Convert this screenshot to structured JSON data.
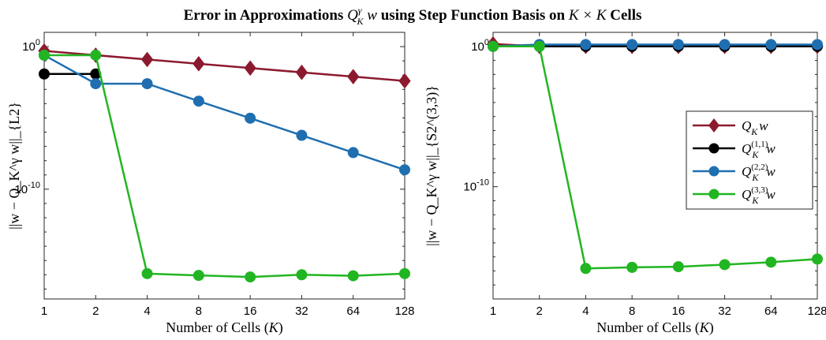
{
  "figure": {
    "title": "Error in Approximations Q_K^γ w using Step Function Basis on K × K Cells"
  },
  "colors": {
    "QKw": "#8c1a2e",
    "Q11": "#000000",
    "Q22": "#1f6fb0",
    "Q33": "#22b522",
    "axes": "#262626",
    "grid_bg": "#ffffff"
  },
  "chart_data": [
    {
      "type": "line",
      "xlabel": "Number of Cells (K)",
      "ylabel": "||w − Q_K^γ w||_{L2}",
      "xscale": "log2",
      "yscale": "log",
      "x": [
        1,
        2,
        4,
        8,
        16,
        32,
        64,
        128
      ],
      "x_tick_labels": [
        "1",
        "2",
        "4",
        "8",
        "16",
        "32",
        "64",
        "128"
      ],
      "y_tick_labels": [
        {
          "value": 1,
          "label": "10^0"
        },
        {
          "value": 1e-10,
          "label": "10^-10"
        }
      ],
      "ylim": [
        2e-18,
        10
      ],
      "series": [
        {
          "name": "Q_K w",
          "color_key": "QKw",
          "marker": "diamond",
          "values": [
            0.5,
            0.25,
            0.125,
            0.0625,
            0.03125,
            0.015625,
            0.0078125,
            0.00390625
          ]
        },
        {
          "name": "Q_K^(1,1) w",
          "color_key": "Q11",
          "marker": "circle",
          "values": [
            0.012,
            0.012,
            null,
            null,
            null,
            null,
            null,
            null
          ]
        },
        {
          "name": "Q_K^(2,2) w",
          "color_key": "Q22",
          "marker": "circle",
          "values": [
            0.25,
            0.0025,
            0.0025,
            0.00015,
            9.5e-06,
            6e-07,
            3.7e-08,
            2.3e-09
          ]
        },
        {
          "name": "Q_K^(3,3) w",
          "color_key": "Q33",
          "marker": "circle",
          "values": [
            0.25,
            0.25,
            1.2e-16,
            9e-17,
            7e-17,
            1e-16,
            8.5e-17,
            1.2e-16
          ]
        }
      ]
    },
    {
      "type": "line",
      "xlabel": "Number of Cells (K)",
      "ylabel": "||w − Q_K^γ w||_{S2^(3,3)}",
      "xscale": "log2",
      "yscale": "log",
      "x": [
        1,
        2,
        4,
        8,
        16,
        32,
        64,
        128
      ],
      "x_tick_labels": [
        "1",
        "2",
        "4",
        "8",
        "16",
        "32",
        "64",
        "128"
      ],
      "y_tick_labels": [
        {
          "value": 1,
          "label": "10^0"
        },
        {
          "value": 1e-10,
          "label": "10^-10"
        }
      ],
      "ylim": [
        1e-18,
        10
      ],
      "legend": {
        "placement": "right",
        "entries": [
          "Q_K w",
          "Q_K^(1,1) w",
          "Q_K^(2,2) w",
          "Q_K^(3,3) w"
        ]
      },
      "series": [
        {
          "name": "Q_K w",
          "color_key": "QKw",
          "marker": "diamond",
          "values": [
            1.5,
            1.0,
            1.0,
            1.0,
            1.0,
            1.0,
            1.0,
            1.0
          ]
        },
        {
          "name": "Q_K^(1,1) w",
          "color_key": "Q11",
          "marker": "circle",
          "values": [
            1.0,
            1.0,
            1.0,
            1.0,
            1.0,
            1.0,
            1.0,
            1.0
          ]
        },
        {
          "name": "Q_K^(2,2) w",
          "color_key": "Q22",
          "marker": "circle",
          "values": [
            1.0,
            1.35,
            1.35,
            1.35,
            1.35,
            1.35,
            1.35,
            1.35
          ]
        },
        {
          "name": "Q_K^(3,3) w",
          "color_key": "Q33",
          "marker": "circle",
          "values": [
            1.0,
            1.0,
            1.5e-16,
            1.8e-16,
            2e-16,
            2.8e-16,
            4.2e-16,
            7e-16
          ]
        }
      ]
    }
  ]
}
